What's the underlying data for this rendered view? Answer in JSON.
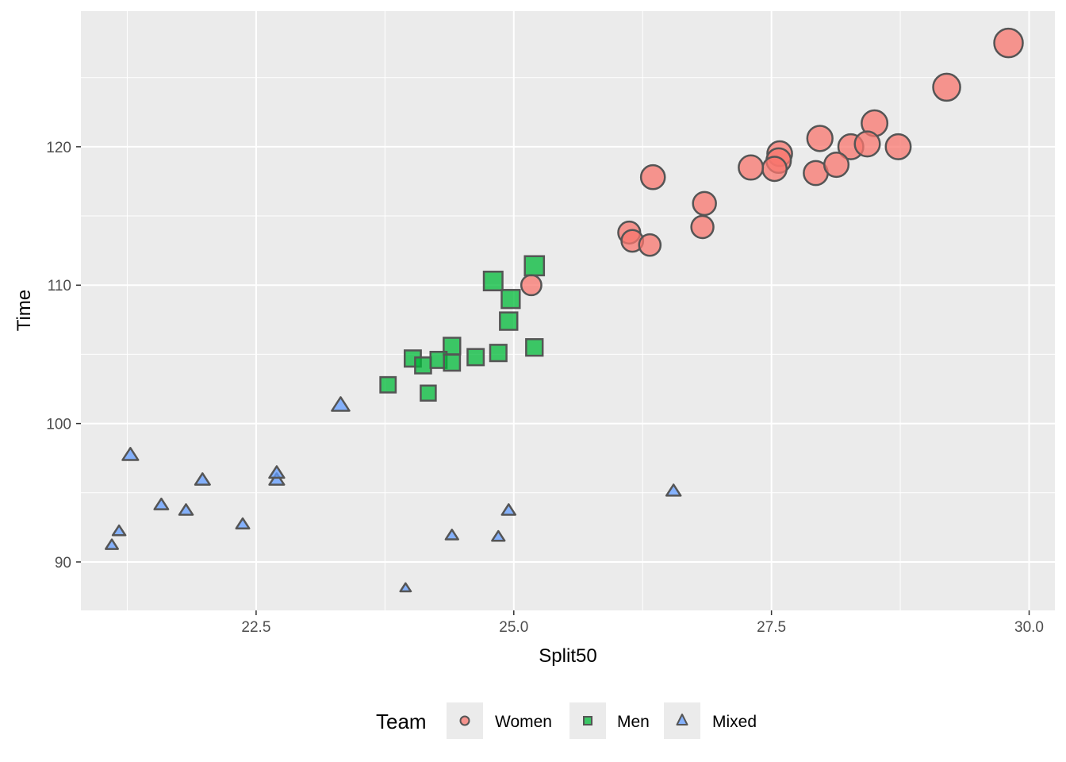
{
  "chart_data": {
    "type": "scatter",
    "xlabel": "Split50",
    "ylabel": "Time",
    "xlim": [
      20.8,
      30.25
    ],
    "ylim": [
      86.5,
      129.8
    ],
    "x_ticks": [
      22.5,
      25.0,
      27.5,
      30.0
    ],
    "x_tick_labels": [
      "22.5",
      "25.0",
      "27.5",
      "30.0"
    ],
    "y_ticks": [
      90,
      100,
      110,
      120
    ],
    "y_tick_labels": [
      "90",
      "100",
      "110",
      "120"
    ],
    "grid": true,
    "legend": {
      "title": "Team",
      "position": "bottom"
    },
    "series": [
      {
        "name": "Women",
        "shape": "circle",
        "color": "#F8766D",
        "points": [
          {
            "x": 29.8,
            "y": 127.5
          },
          {
            "x": 29.2,
            "y": 124.3
          },
          {
            "x": 28.5,
            "y": 121.7
          },
          {
            "x": 27.97,
            "y": 120.6
          },
          {
            "x": 28.27,
            "y": 120.0
          },
          {
            "x": 28.43,
            "y": 120.2
          },
          {
            "x": 28.73,
            "y": 120.0
          },
          {
            "x": 27.58,
            "y": 119.5
          },
          {
            "x": 27.57,
            "y": 119.0
          },
          {
            "x": 27.53,
            "y": 118.4
          },
          {
            "x": 27.3,
            "y": 118.5
          },
          {
            "x": 27.93,
            "y": 118.1
          },
          {
            "x": 28.13,
            "y": 118.7
          },
          {
            "x": 26.35,
            "y": 117.8
          },
          {
            "x": 26.85,
            "y": 115.9
          },
          {
            "x": 26.83,
            "y": 114.2
          },
          {
            "x": 26.12,
            "y": 113.8
          },
          {
            "x": 26.15,
            "y": 113.2
          },
          {
            "x": 26.32,
            "y": 112.9
          },
          {
            "x": 25.17,
            "y": 110.0
          }
        ]
      },
      {
        "name": "Men",
        "shape": "square",
        "color": "#00BA38",
        "points": [
          {
            "x": 25.2,
            "y": 111.4
          },
          {
            "x": 24.8,
            "y": 110.3
          },
          {
            "x": 24.97,
            "y": 109.0
          },
          {
            "x": 24.95,
            "y": 107.4
          },
          {
            "x": 25.2,
            "y": 105.5
          },
          {
            "x": 24.4,
            "y": 105.6
          },
          {
            "x": 24.02,
            "y": 104.7
          },
          {
            "x": 24.63,
            "y": 104.8
          },
          {
            "x": 24.85,
            "y": 105.1
          },
          {
            "x": 24.12,
            "y": 104.2
          },
          {
            "x": 24.27,
            "y": 104.6
          },
          {
            "x": 24.4,
            "y": 104.4
          },
          {
            "x": 23.78,
            "y": 102.8
          },
          {
            "x": 24.17,
            "y": 102.2
          }
        ]
      },
      {
        "name": "Mixed",
        "shape": "triangle",
        "color": "#619CFF",
        "points": [
          {
            "x": 23.32,
            "y": 101.3
          },
          {
            "x": 21.28,
            "y": 97.7
          },
          {
            "x": 21.98,
            "y": 95.9
          },
          {
            "x": 22.7,
            "y": 95.9
          },
          {
            "x": 22.7,
            "y": 96.4
          },
          {
            "x": 26.55,
            "y": 95.1
          },
          {
            "x": 21.58,
            "y": 94.1
          },
          {
            "x": 21.82,
            "y": 93.7
          },
          {
            "x": 24.95,
            "y": 93.7
          },
          {
            "x": 22.37,
            "y": 92.7
          },
          {
            "x": 21.17,
            "y": 92.2
          },
          {
            "x": 24.4,
            "y": 91.9
          },
          {
            "x": 24.85,
            "y": 91.8
          },
          {
            "x": 21.1,
            "y": 91.2
          },
          {
            "x": 23.95,
            "y": 88.1
          }
        ]
      }
    ]
  }
}
